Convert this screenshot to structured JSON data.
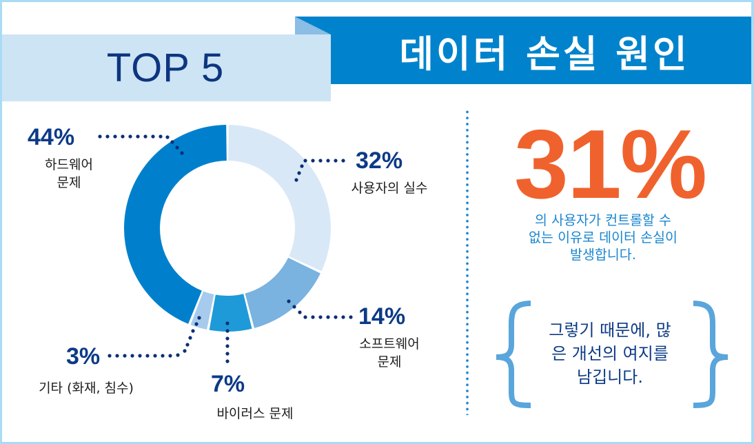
{
  "header": {
    "badge": "TOP 5",
    "title": "데이터 손실 원인"
  },
  "colors": {
    "header_blue": "#0083cc",
    "header_fold": "#8bbde5",
    "badge_band": "#cde4f5",
    "navy_text": "#0d3580",
    "accent_orange": "#f0622d",
    "divider_blue": "#1c86cf",
    "brace_blue": "#5aa5db",
    "frame_border": "#a9dbf4"
  },
  "chart_data": {
    "type": "pie",
    "subtype": "donut",
    "title": "데이터 손실 원인 TOP 5",
    "categories": [
      "하드웨어 문제",
      "사용자의 실수",
      "소프트웨어 문제",
      "바이러스 문제",
      "기타 (화재, 침수)"
    ],
    "values": [
      44,
      32,
      14,
      7,
      3
    ],
    "unit": "%",
    "colors": [
      "#0080cc",
      "#d9e8f7",
      "#7ab2e0",
      "#1f9ad8",
      "#a6cbec"
    ],
    "order_clockwise_from_top": [
      "사용자의 실수",
      "소프트웨어 문제",
      "바이러스 문제",
      "기타 (화재, 침수)",
      "하드웨어 문제"
    ],
    "legend": "callout labels with dotted leader lines"
  },
  "callouts": {
    "hardware": {
      "pct": "44%",
      "line1": "하드웨어",
      "line2": "문제"
    },
    "user_error": {
      "pct": "32%",
      "line1": "사용자의 실수"
    },
    "software": {
      "pct": "14%",
      "line1": "소프트웨어",
      "line2": "문제"
    },
    "virus": {
      "pct": "7%",
      "line1": "바이러스 문제"
    },
    "other": {
      "pct": "3%",
      "line1": "기타 (화재, 침수)"
    }
  },
  "stat": {
    "value": "31%",
    "desc_line1": "의 사용자가 컨트롤할 수",
    "desc_line2": "없는 이유로 데이터 손실이",
    "desc_line3": "발생합니다."
  },
  "conclusion": {
    "line1": "그렇기 때문에, 많",
    "line2": "은 개선의 여지를",
    "line3": "남깁니다."
  }
}
